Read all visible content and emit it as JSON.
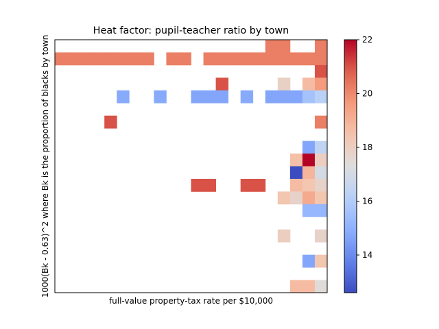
{
  "chart_data": {
    "type": "heatmap",
    "title": "Heat factor: pupil-teacher ratio by town",
    "xlabel": "full-value property-tax rate per $10,000",
    "ylabel": "1000(Bk - 0.63)^2 where Bk is the proportion of blacks by town",
    "grid": false,
    "n_cols": 22,
    "n_rows": 20,
    "colorbar": {
      "colormap": "coolwarm",
      "min": 12.6,
      "max": 22.0,
      "ticks": [
        14,
        16,
        18,
        20,
        22
      ],
      "tick_labels": [
        "14",
        "16",
        "18",
        "20",
        "22"
      ]
    },
    "cells": [
      {
        "col": 17,
        "row": 0,
        "value": 20.2
      },
      {
        "col": 18,
        "row": 0,
        "value": 20.2
      },
      {
        "col": 21,
        "row": 0,
        "value": 20.2
      },
      {
        "col": 0,
        "row": 1,
        "value": 20.2
      },
      {
        "col": 1,
        "row": 1,
        "value": 20.2
      },
      {
        "col": 2,
        "row": 1,
        "value": 20.2
      },
      {
        "col": 3,
        "row": 1,
        "value": 20.2
      },
      {
        "col": 4,
        "row": 1,
        "value": 20.2
      },
      {
        "col": 5,
        "row": 1,
        "value": 20.2
      },
      {
        "col": 6,
        "row": 1,
        "value": 20.2
      },
      {
        "col": 7,
        "row": 1,
        "value": 20.2
      },
      {
        "col": 9,
        "row": 1,
        "value": 20.2
      },
      {
        "col": 10,
        "row": 1,
        "value": 20.2
      },
      {
        "col": 12,
        "row": 1,
        "value": 20.2
      },
      {
        "col": 13,
        "row": 1,
        "value": 20.2
      },
      {
        "col": 14,
        "row": 1,
        "value": 20.2
      },
      {
        "col": 15,
        "row": 1,
        "value": 20.2
      },
      {
        "col": 16,
        "row": 1,
        "value": 20.2
      },
      {
        "col": 17,
        "row": 1,
        "value": 20.2
      },
      {
        "col": 18,
        "row": 1,
        "value": 20.2
      },
      {
        "col": 19,
        "row": 1,
        "value": 20.2
      },
      {
        "col": 20,
        "row": 1,
        "value": 20.2
      },
      {
        "col": 21,
        "row": 1,
        "value": 20.2
      },
      {
        "col": 21,
        "row": 2,
        "value": 21.0
      },
      {
        "col": 13,
        "row": 3,
        "value": 21.0
      },
      {
        "col": 18,
        "row": 3,
        "value": 17.9
      },
      {
        "col": 20,
        "row": 3,
        "value": 18.7
      },
      {
        "col": 21,
        "row": 3,
        "value": 19.6
      },
      {
        "col": 5,
        "row": 4,
        "value": 14.8
      },
      {
        "col": 8,
        "row": 4,
        "value": 14.8
      },
      {
        "col": 11,
        "row": 4,
        "value": 14.7
      },
      {
        "col": 12,
        "row": 4,
        "value": 14.7
      },
      {
        "col": 13,
        "row": 4,
        "value": 14.7
      },
      {
        "col": 15,
        "row": 4,
        "value": 14.8
      },
      {
        "col": 17,
        "row": 4,
        "value": 14.7
      },
      {
        "col": 18,
        "row": 4,
        "value": 14.7
      },
      {
        "col": 19,
        "row": 4,
        "value": 14.7
      },
      {
        "col": 20,
        "row": 4,
        "value": 15.6
      },
      {
        "col": 21,
        "row": 4,
        "value": 16.2
      },
      {
        "col": 4,
        "row": 6,
        "value": 21.0
      },
      {
        "col": 21,
        "row": 6,
        "value": 20.2
      },
      {
        "col": 20,
        "row": 8,
        "value": 14.7
      },
      {
        "col": 21,
        "row": 8,
        "value": 16.4
      },
      {
        "col": 19,
        "row": 9,
        "value": 18.6
      },
      {
        "col": 20,
        "row": 9,
        "value": 22.0
      },
      {
        "col": 21,
        "row": 9,
        "value": 18.0
      },
      {
        "col": 19,
        "row": 10,
        "value": 12.6
      },
      {
        "col": 20,
        "row": 10,
        "value": 18.9
      },
      {
        "col": 21,
        "row": 10,
        "value": 17.0
      },
      {
        "col": 11,
        "row": 11,
        "value": 21.0
      },
      {
        "col": 12,
        "row": 11,
        "value": 21.0
      },
      {
        "col": 15,
        "row": 11,
        "value": 21.0
      },
      {
        "col": 16,
        "row": 11,
        "value": 21.0
      },
      {
        "col": 19,
        "row": 11,
        "value": 18.7
      },
      {
        "col": 20,
        "row": 11,
        "value": 18.4
      },
      {
        "col": 21,
        "row": 11,
        "value": 17.8
      },
      {
        "col": 18,
        "row": 12,
        "value": 18.4
      },
      {
        "col": 19,
        "row": 12,
        "value": 17.8
      },
      {
        "col": 20,
        "row": 12,
        "value": 19.2
      },
      {
        "col": 21,
        "row": 12,
        "value": 18.4
      },
      {
        "col": 20,
        "row": 13,
        "value": 15.2
      },
      {
        "col": 21,
        "row": 13,
        "value": 15.2
      },
      {
        "col": 18,
        "row": 15,
        "value": 18.0
      },
      {
        "col": 21,
        "row": 15,
        "value": 17.8
      },
      {
        "col": 20,
        "row": 17,
        "value": 14.7
      },
      {
        "col": 21,
        "row": 17,
        "value": 18.4
      },
      {
        "col": 19,
        "row": 19,
        "value": 18.7
      },
      {
        "col": 20,
        "row": 19,
        "value": 18.7
      },
      {
        "col": 21,
        "row": 19,
        "value": 17.4
      }
    ]
  }
}
